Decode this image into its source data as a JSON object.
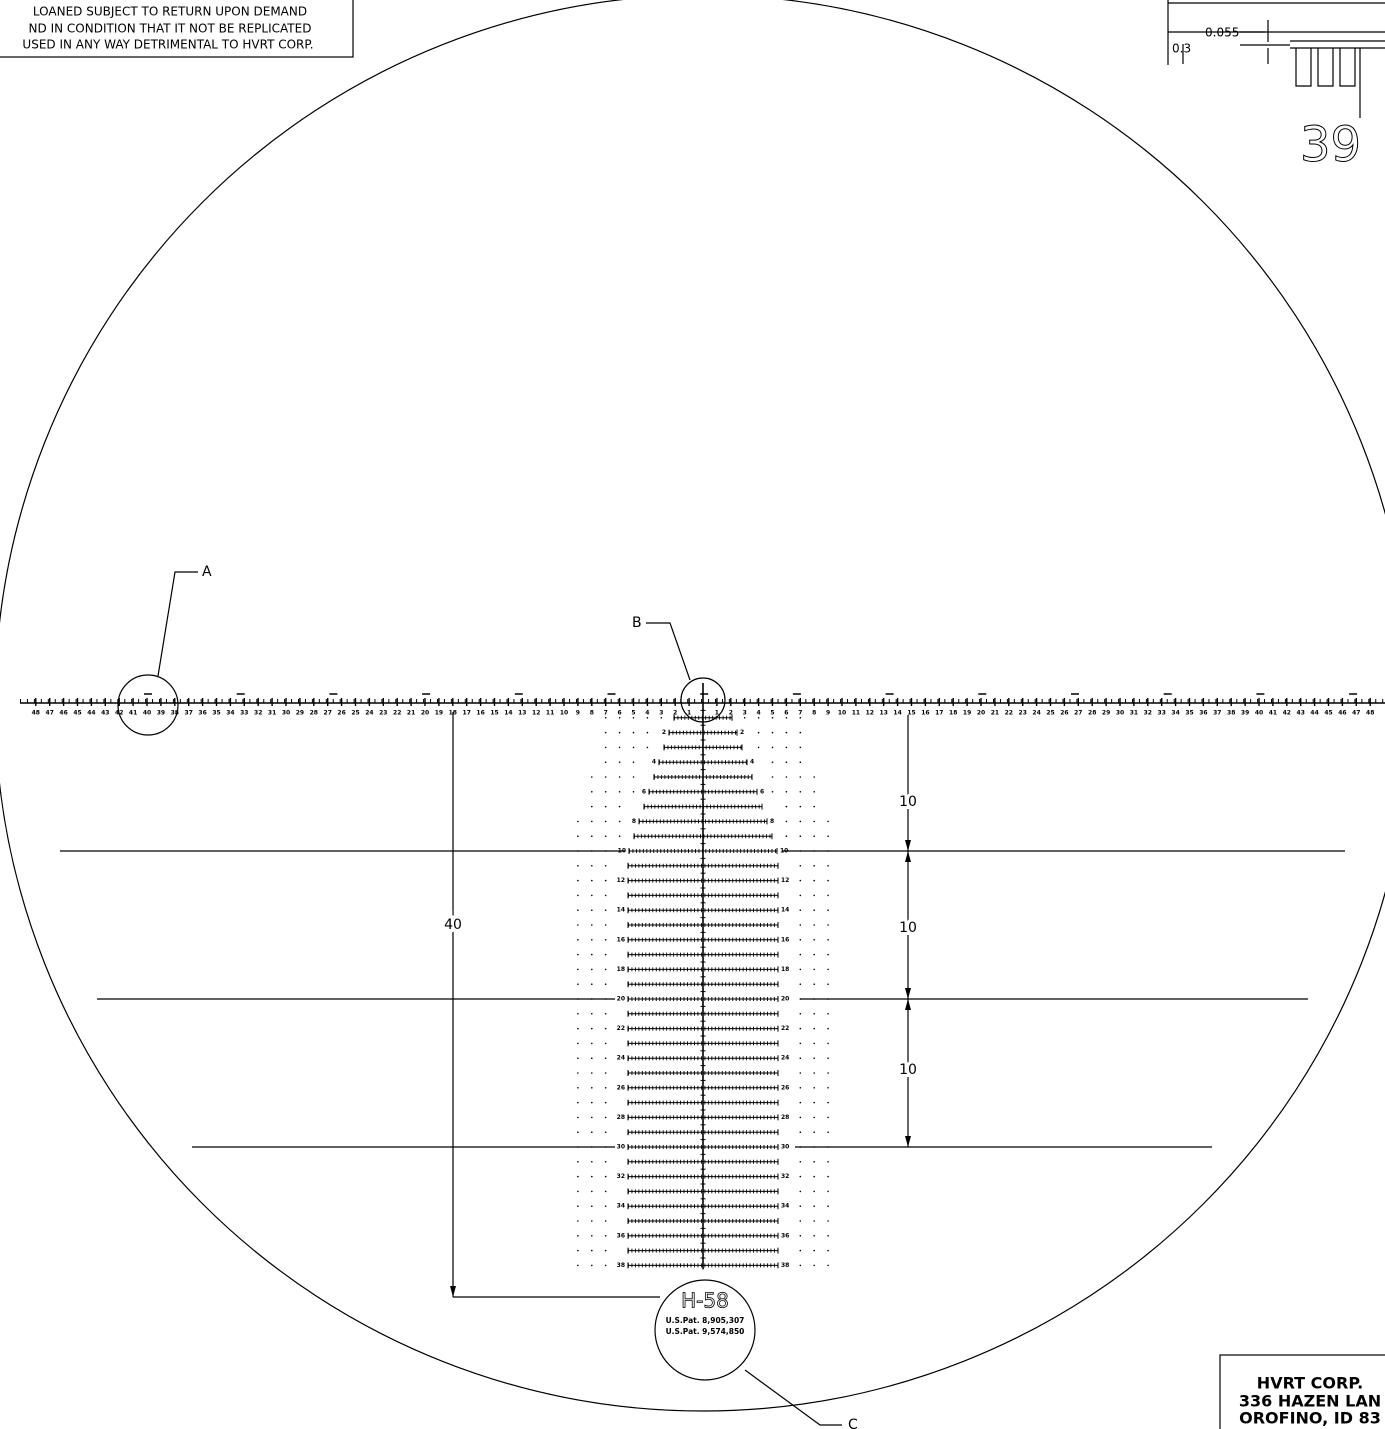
{
  "notice": [
    "LOANED SUBJECT TO RETURN UPON DEMAND",
    "ND IN CONDITION THAT IT NOT BE REPLICATED",
    "USED IN ANY WAY DETRIMENTAL TO HVRT CORP."
  ],
  "detail": {
    "dims": [
      "0.3",
      "0.055"
    ],
    "number": "39"
  },
  "callouts": [
    "A",
    "B",
    "C"
  ],
  "dimensions": {
    "spacing": [
      "10",
      "10",
      "10"
    ],
    "height": "40"
  },
  "reticle": {
    "row_labels": [
      2,
      4,
      6,
      8,
      10,
      12,
      14,
      16,
      18,
      20,
      22,
      24,
      26,
      28,
      30,
      32,
      34,
      36,
      38
    ],
    "scale_labels": [
      1,
      2,
      3,
      4,
      5,
      6,
      7,
      8,
      9,
      10,
      11,
      12,
      13,
      14,
      15,
      16,
      17,
      18,
      19,
      20,
      21,
      22,
      23,
      24,
      25,
      26,
      27,
      28,
      29,
      30,
      31,
      32,
      33,
      34,
      35,
      36,
      37,
      38,
      39,
      40,
      41,
      42,
      43,
      44,
      45,
      46,
      47,
      48
    ]
  },
  "marking": {
    "model": "H-58",
    "patents": [
      "U.S.Pat. 8,905,307",
      "U.S.Pat. 9,574,850"
    ]
  },
  "title_block": [
    "HVRT CORP.",
    "336 HAZEN LAN",
    "OROFINO, ID 83"
  ]
}
